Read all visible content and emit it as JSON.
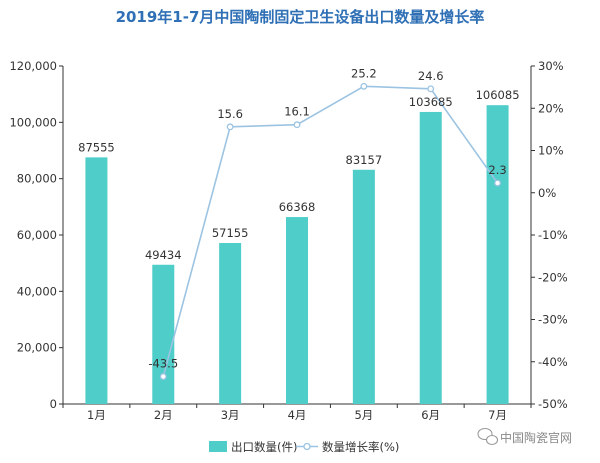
{
  "chart_data": {
    "type": "bar",
    "title": "2019年1-7月中国陶制固定卫生设备出口数量及增长率",
    "categories": [
      "1月",
      "2月",
      "3月",
      "4月",
      "5月",
      "6月",
      "7月"
    ],
    "series": [
      {
        "name": "出口数量(件)",
        "type": "bar",
        "axis": "left",
        "color": "#4ecdc9",
        "values": [
          87555,
          49434,
          57155,
          66368,
          83157,
          103685,
          106085
        ],
        "labels": [
          "87555",
          "49434",
          "57155",
          "66368",
          "83157",
          "103685",
          "106085"
        ]
      },
      {
        "name": "数量增长率(%)",
        "type": "line",
        "axis": "right",
        "color": "#9cc4e2",
        "values": [
          null,
          -43.5,
          15.6,
          16.1,
          25.2,
          24.6,
          2.3
        ],
        "labels": [
          "",
          "-43.5",
          "15.6",
          "16.1",
          "25.2",
          "24.6",
          "2.3"
        ]
      }
    ],
    "y_left": {
      "ylim": [
        0,
        120000
      ],
      "ticks": [
        0,
        20000,
        40000,
        60000,
        80000,
        100000,
        120000
      ],
      "tick_labels": [
        "0",
        "20,000",
        "40,000",
        "60,000",
        "80,000",
        "100,000",
        "120,000"
      ]
    },
    "y_right": {
      "ylim": [
        -50,
        30
      ],
      "ticks": [
        30,
        20,
        10,
        0,
        -10,
        -20,
        -30,
        -40,
        -50
      ],
      "tick_labels": [
        "30%",
        "20%",
        "10%",
        "0%",
        "-10%",
        "-20%",
        "-30%",
        "-40%",
        "-50%"
      ]
    },
    "legend": [
      "出口数量(件)",
      "数量增长率(%)"
    ],
    "legend_position": "bottom",
    "grid": false
  },
  "watermark": {
    "icon": "wechat-icon",
    "text": "中国陶瓷官网"
  }
}
